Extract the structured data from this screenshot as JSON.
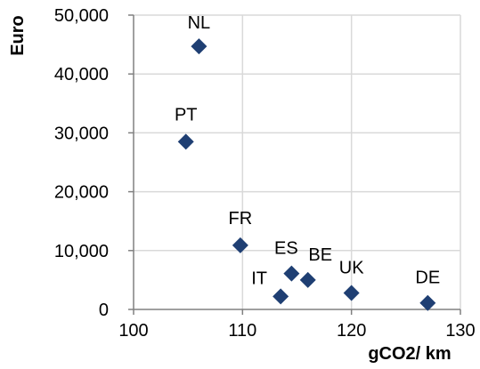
{
  "chart_data": {
    "type": "scatter",
    "title": "",
    "xlabel": "gCO2/ km",
    "ylabel": "Euro",
    "xlim": [
      100,
      130
    ],
    "ylim": [
      0,
      50000
    ],
    "x_ticks": [
      100,
      110,
      120,
      130
    ],
    "x_tick_labels": [
      "100",
      "110",
      "120",
      "130"
    ],
    "y_ticks": [
      0,
      10000,
      20000,
      30000,
      40000,
      50000
    ],
    "y_tick_labels": [
      "0",
      "10,000",
      "20,000",
      "30,000",
      "40,000",
      "50,000"
    ],
    "grid": {
      "horizontal": true,
      "vertical": true
    },
    "legend": "none",
    "marker": "diamond",
    "marker_color": "#1f3f73",
    "points": [
      {
        "label": "NL",
        "x": 106,
        "y": 44700
      },
      {
        "label": "PT",
        "x": 104.8,
        "y": 28500
      },
      {
        "label": "FR",
        "x": 109.8,
        "y": 10900
      },
      {
        "label": "ES",
        "x": 114.5,
        "y": 6100
      },
      {
        "label": "BE",
        "x": 116,
        "y": 5000
      },
      {
        "label": "IT",
        "x": 113.5,
        "y": 2200
      },
      {
        "label": "UK",
        "x": 120,
        "y": 2800
      },
      {
        "label": "DE",
        "x": 127,
        "y": 1100
      }
    ]
  }
}
